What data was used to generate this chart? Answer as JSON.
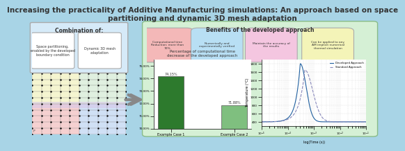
{
  "title": "Increasing the practicality of Additive Manufacturing simulations: An approach based on space\npartitioning and dynamic 3D mesh adaptation",
  "title_fontsize": 7.5,
  "bg_color": "#a8d4e6",
  "left_box_color": "#d6eaf8",
  "right_box_color": "#d5f0d5",
  "combination_title": "Combination of:",
  "benefits_title": "Benefits of the developed approach",
  "combo_items": [
    "Space partitioning,\nenabled by the developed\nboundary condition",
    "Dynamic 3D mesh\nadaptation"
  ],
  "benefit_items": [
    "Computational time\nReduction: more than\n70%",
    "Numerically and\nexperimentally verified",
    "Maintain the accuracy of\nthe results",
    "Can be applied to any\nAM implicit numerical\nthermal simulation"
  ],
  "benefit_colors": [
    "#f4b8b8",
    "#b8dff4",
    "#f4c6e0",
    "#f4f4b8"
  ],
  "bar_title": "Percentage of computational time\ndecrease of the developed approach",
  "bar_categories": [
    "Example Case 1",
    "Example Case 2"
  ],
  "bar_values": [
    74.15,
    71.88
  ],
  "bar_labels": [
    "74.15%",
    "71.88%"
  ],
  "bar_color_dark": "#2d7a2d",
  "bar_color_light": "#7fbf7f",
  "bar_ylim": [
    70.0,
    75.5
  ],
  "bar_yticks": [
    70.0,
    71.0,
    72.0,
    73.0,
    74.0,
    75.0
  ],
  "bar_ytick_labels": [
    "70.00%",
    "71.00%",
    "72.00%",
    "73.00%",
    "74.00%",
    "75.00%"
  ],
  "line_legend": [
    "Developed Approach",
    "Standard Approach"
  ],
  "line_xlabel": "log(Time (s))",
  "line_ylabel": "Temperature (°C)",
  "line_yticks": [
    400,
    600,
    800,
    1000,
    1200,
    1400,
    1600,
    1800
  ],
  "grid_color": "#cccccc",
  "arrow_color": "#888888"
}
